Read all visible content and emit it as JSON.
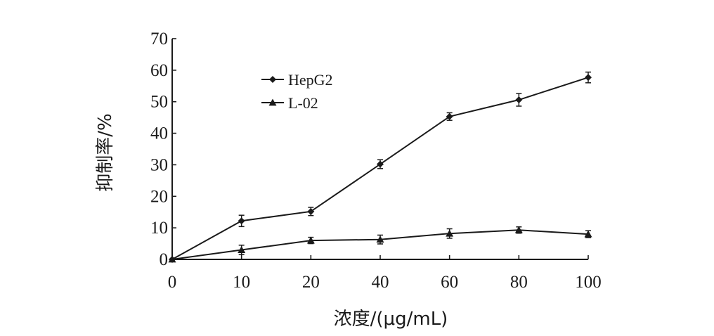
{
  "chart_data": {
    "type": "line",
    "xlabel": "浓度/(μg/mL)",
    "ylabel": "抑制率/%",
    "ylim": [
      0,
      70
    ],
    "categories": [
      "0",
      "10",
      "20",
      "40",
      "60",
      "80",
      "100"
    ],
    "y_ticks": [
      0,
      10,
      20,
      30,
      40,
      50,
      60,
      70
    ],
    "grid": false,
    "legend_position": "top-left",
    "series": [
      {
        "name": "HepG2",
        "marker": "diamond",
        "values": [
          0,
          12.2,
          15.2,
          30.2,
          45.3,
          50.6,
          57.7
        ],
        "errors": [
          0.5,
          1.8,
          1.3,
          1.4,
          1.2,
          2.0,
          1.7
        ]
      },
      {
        "name": "L-02",
        "marker": "triangle",
        "values": [
          0,
          3.0,
          6.0,
          6.3,
          8.2,
          9.3,
          8.0
        ],
        "errors": [
          0.5,
          1.5,
          1.0,
          1.4,
          1.5,
          1.0,
          1.1
        ]
      }
    ]
  }
}
